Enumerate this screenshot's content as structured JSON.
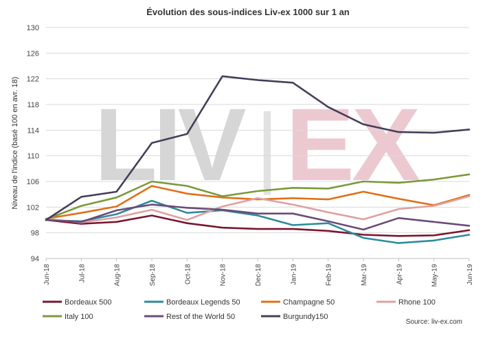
{
  "chart_data": {
    "type": "line",
    "title": "Évolution des sous-indices Liv-ex 1000 sur 1 an",
    "ylabel": "Niveau de l'indice (basé 100 en avr. 18)",
    "xlabel": "",
    "ylim": [
      94,
      130
    ],
    "yticks": [
      94,
      98,
      102,
      106,
      110,
      114,
      118,
      122,
      126,
      130
    ],
    "grid": true,
    "legend_position": "bottom",
    "categories": [
      "Jun-18",
      "Jul-18",
      "Aug-18",
      "Sep-18",
      "Oct-18",
      "Nov-18",
      "Dec-18",
      "Jan-19",
      "Feb-19",
      "Mar-19",
      "Apr-19",
      "May-19",
      "Jun-19"
    ],
    "series": [
      {
        "name": "Bordeaux 500",
        "color": "#7a1530",
        "values": [
          100.0,
          99.4,
          99.7,
          100.7,
          99.5,
          98.8,
          98.6,
          98.6,
          98.3,
          97.7,
          97.5,
          97.6,
          98.4
        ]
      },
      {
        "name": "Bordeaux Legends 50",
        "color": "#2e8a9a",
        "values": [
          100.0,
          99.8,
          100.9,
          103.0,
          101.1,
          101.5,
          100.7,
          99.2,
          99.5,
          97.2,
          96.4,
          96.8,
          97.7
        ]
      },
      {
        "name": "Champagne 50",
        "color": "#e07018",
        "values": [
          100.2,
          101.1,
          102.1,
          105.3,
          104.1,
          103.5,
          103.2,
          103.4,
          103.2,
          104.4,
          103.3,
          102.3,
          103.9
        ]
      },
      {
        "name": "Rhone 100",
        "color": "#e0a0a0",
        "values": [
          100.2,
          99.6,
          100.4,
          101.6,
          100.0,
          102.1,
          103.4,
          102.4,
          101.2,
          100.1,
          101.7,
          102.2,
          103.7
        ]
      },
      {
        "name": "Italy 100",
        "color": "#7a9a3a",
        "values": [
          100.1,
          102.2,
          103.5,
          106.0,
          105.3,
          103.7,
          104.5,
          105.0,
          104.9,
          106.0,
          105.8,
          106.3,
          107.1
        ]
      },
      {
        "name": "Rest of the World 50",
        "color": "#6a4a7a",
        "values": [
          100.0,
          99.7,
          101.5,
          102.4,
          101.9,
          101.6,
          101.0,
          101.0,
          99.8,
          98.5,
          100.3,
          99.7,
          99.1
        ]
      },
      {
        "name": "Burgundy150",
        "color": "#453d5a",
        "values": [
          100.0,
          103.6,
          104.4,
          112.0,
          113.4,
          122.4,
          121.8,
          121.4,
          117.6,
          114.9,
          113.7,
          113.6,
          114.1
        ]
      }
    ],
    "source": "Source: liv-ex.com",
    "watermark": {
      "left": "LIV",
      "right": "EX",
      "separator": "|"
    }
  }
}
